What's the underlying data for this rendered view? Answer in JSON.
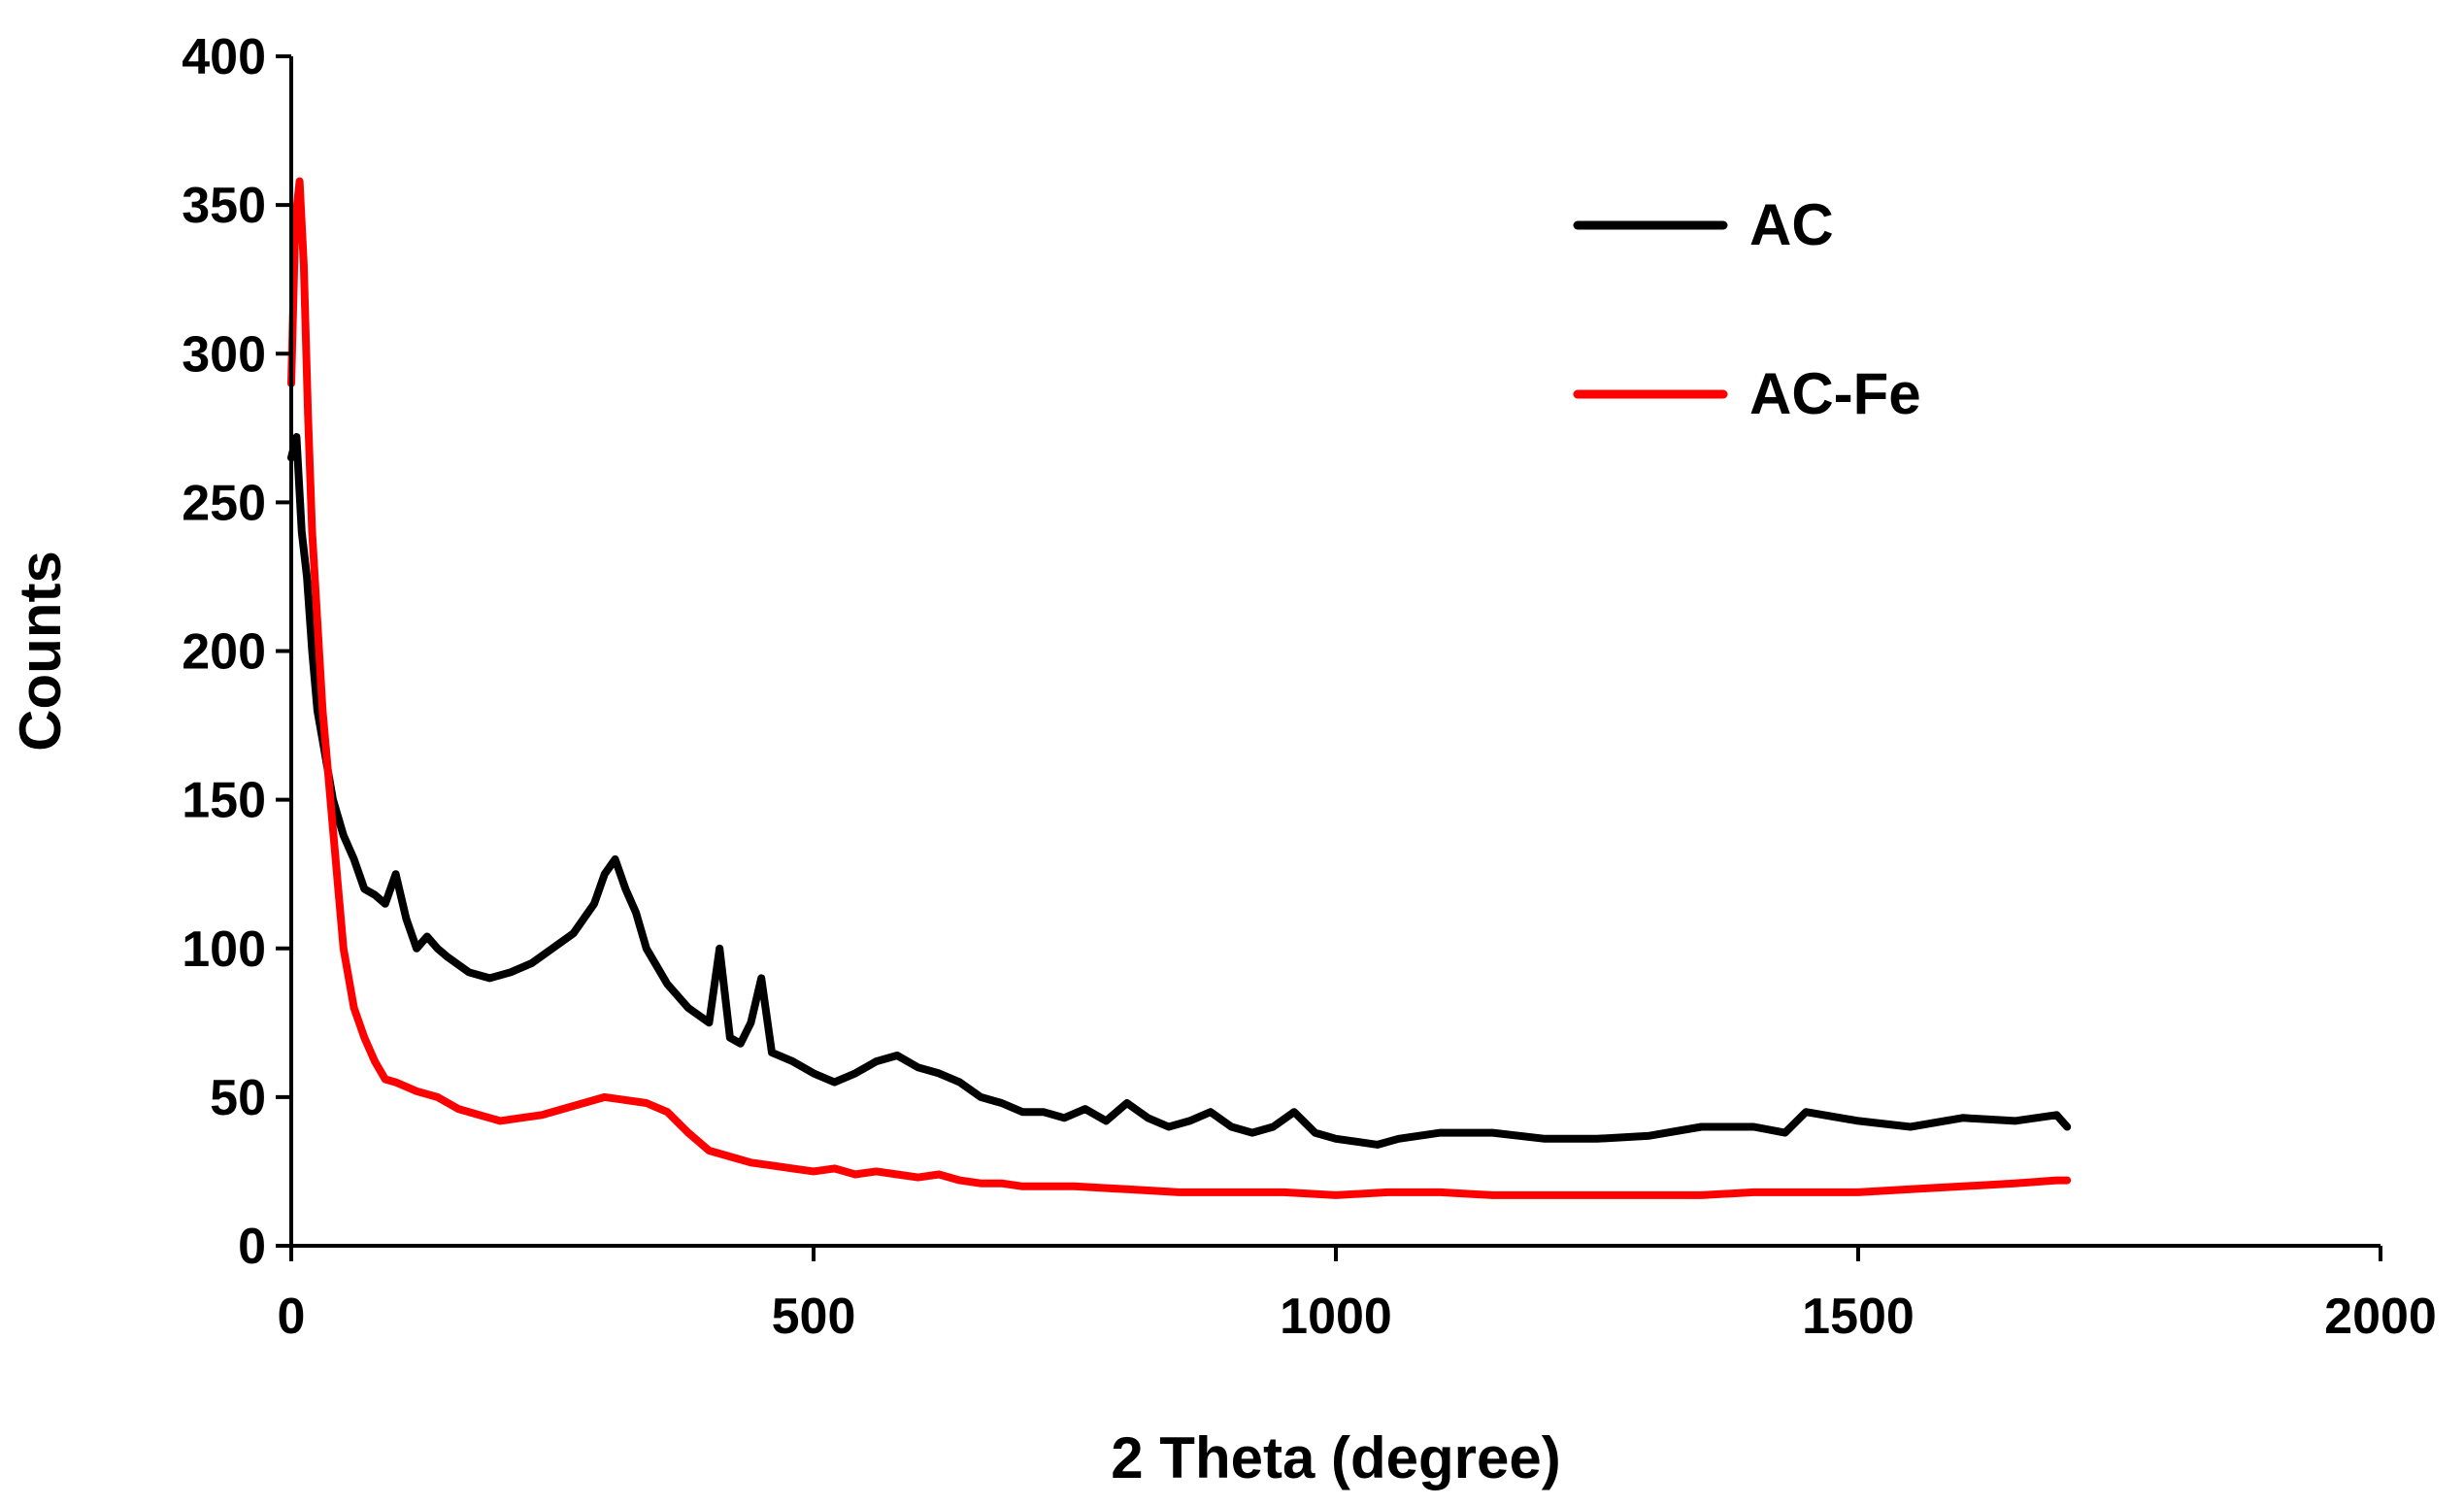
{
  "chart_data": {
    "type": "line",
    "title": "",
    "xlabel": "2 Theta (degree)",
    "ylabel": "Counts",
    "xlim": [
      0,
      2000
    ],
    "ylim": [
      0,
      400
    ],
    "xticks": [
      0,
      500,
      1000,
      1500,
      2000
    ],
    "yticks": [
      0,
      50,
      100,
      150,
      200,
      250,
      300,
      350,
      400
    ],
    "grid": false,
    "legend": "top-right",
    "series": [
      {
        "name": "AC",
        "color": "#000000",
        "x": [
          0,
          5,
          10,
          15,
          20,
          25,
          30,
          40,
          50,
          60,
          70,
          80,
          90,
          100,
          110,
          120,
          130,
          140,
          150,
          170,
          190,
          210,
          230,
          250,
          270,
          290,
          300,
          310,
          320,
          330,
          340,
          360,
          380,
          400,
          410,
          420,
          430,
          440,
          450,
          460,
          480,
          500,
          520,
          540,
          560,
          580,
          600,
          620,
          640,
          660,
          680,
          700,
          720,
          740,
          760,
          780,
          800,
          820,
          840,
          860,
          880,
          900,
          920,
          940,
          960,
          980,
          1000,
          1020,
          1040,
          1060,
          1080,
          1100,
          1150,
          1200,
          1250,
          1300,
          1350,
          1400,
          1430,
          1450,
          1500,
          1550,
          1600,
          1650,
          1690,
          1700
        ],
        "y": [
          265,
          272,
          240,
          225,
          200,
          180,
          170,
          150,
          138,
          130,
          120,
          118,
          115,
          125,
          110,
          100,
          104,
          100,
          97,
          92,
          90,
          92,
          95,
          100,
          105,
          115,
          125,
          130,
          120,
          112,
          100,
          88,
          80,
          75,
          100,
          70,
          68,
          75,
          90,
          65,
          62,
          58,
          55,
          58,
          62,
          64,
          60,
          58,
          55,
          50,
          48,
          45,
          45,
          43,
          46,
          42,
          48,
          43,
          40,
          42,
          45,
          40,
          38,
          40,
          45,
          38,
          36,
          35,
          34,
          36,
          37,
          38,
          38,
          36,
          36,
          37,
          40,
          40,
          38,
          45,
          42,
          40,
          43,
          42,
          44,
          40
        ]
      },
      {
        "name": "AC-Fe",
        "color": "#ff0000",
        "x": [
          0,
          4,
          8,
          12,
          16,
          20,
          25,
          30,
          35,
          40,
          45,
          50,
          60,
          70,
          80,
          90,
          100,
          120,
          140,
          160,
          180,
          200,
          220,
          240,
          260,
          280,
          300,
          320,
          340,
          360,
          380,
          400,
          420,
          440,
          460,
          480,
          500,
          520,
          540,
          560,
          580,
          600,
          620,
          640,
          660,
          680,
          700,
          750,
          800,
          850,
          900,
          950,
          1000,
          1050,
          1100,
          1150,
          1200,
          1250,
          1300,
          1350,
          1400,
          1450,
          1500,
          1550,
          1600,
          1650,
          1690,
          1700
        ],
        "y": [
          290,
          345,
          358,
          330,
          280,
          240,
          210,
          180,
          160,
          140,
          120,
          100,
          80,
          70,
          62,
          56,
          55,
          52,
          50,
          46,
          44,
          42,
          43,
          44,
          46,
          48,
          50,
          49,
          48,
          45,
          38,
          32,
          30,
          28,
          27,
          26,
          25,
          26,
          24,
          25,
          24,
          23,
          24,
          22,
          21,
          21,
          20,
          20,
          19,
          18,
          18,
          18,
          17,
          18,
          18,
          17,
          17,
          17,
          17,
          17,
          18,
          18,
          18,
          19,
          20,
          21,
          22,
          22
        ]
      }
    ]
  }
}
